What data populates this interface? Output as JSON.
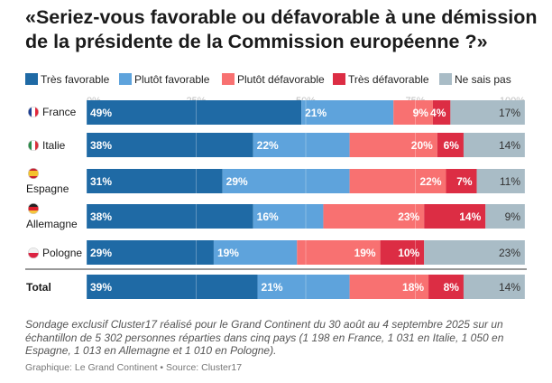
{
  "title": "«Seriez-vous favorable ou défavorable à une démission de la présidente de la Commission européenne ?»",
  "legend": [
    {
      "label": "Très favorable",
      "color": "#1f6aa5"
    },
    {
      "label": "Plutôt favorable",
      "color": "#5ea3dc"
    },
    {
      "label": "Plutôt défavorable",
      "color": "#f87171"
    },
    {
      "label": "Très défavorable",
      "color": "#dc2d44"
    },
    {
      "label": "Ne sais pas",
      "color": "#a9bcc6"
    }
  ],
  "chart_data": {
    "type": "bar",
    "orientation": "horizontal",
    "stacked": true,
    "categories": [
      "France",
      "Italie",
      "Espagne",
      "Allemagne",
      "Pologne",
      "Total"
    ],
    "flag_icons": [
      "france-flag-icon",
      "italy-flag-icon",
      "spain-flag-icon",
      "germany-flag-icon",
      "poland-flag-icon",
      ""
    ],
    "series": [
      {
        "name": "Très favorable",
        "color": "#1f6aa5",
        "values": [
          49,
          38,
          31,
          38,
          29,
          39
        ]
      },
      {
        "name": "Plutôt favorable",
        "color": "#5ea3dc",
        "values": [
          21,
          22,
          29,
          16,
          19,
          21
        ]
      },
      {
        "name": "Plutôt défavorable",
        "color": "#f87171",
        "values": [
          9,
          20,
          22,
          23,
          19,
          18
        ]
      },
      {
        "name": "Très défavorable",
        "color": "#dc2d44",
        "values": [
          4,
          6,
          7,
          14,
          10,
          8
        ]
      },
      {
        "name": "Ne sais pas",
        "color": "#a9bcc6",
        "values": [
          17,
          14,
          11,
          9,
          23,
          14
        ]
      }
    ],
    "xticks": [
      "0%",
      "25%",
      "50%",
      "75%",
      "100%"
    ],
    "xlim": [
      0,
      100
    ],
    "grid": true,
    "legend_position": "top-left"
  },
  "note": "Sondage exclusif Cluster17 réalisé pour le Grand Continent du 30 août au 4 septembre 2025 sur un échantillon de 5 302 personnes réparties dans cinq pays (1 198 en France, 1 031 en Italie, 1 050 en Espagne, 1 013 en Allemagne et 1 010 en Pologne).",
  "credit": "Graphique: Le Grand Continent • Source: Cluster17"
}
